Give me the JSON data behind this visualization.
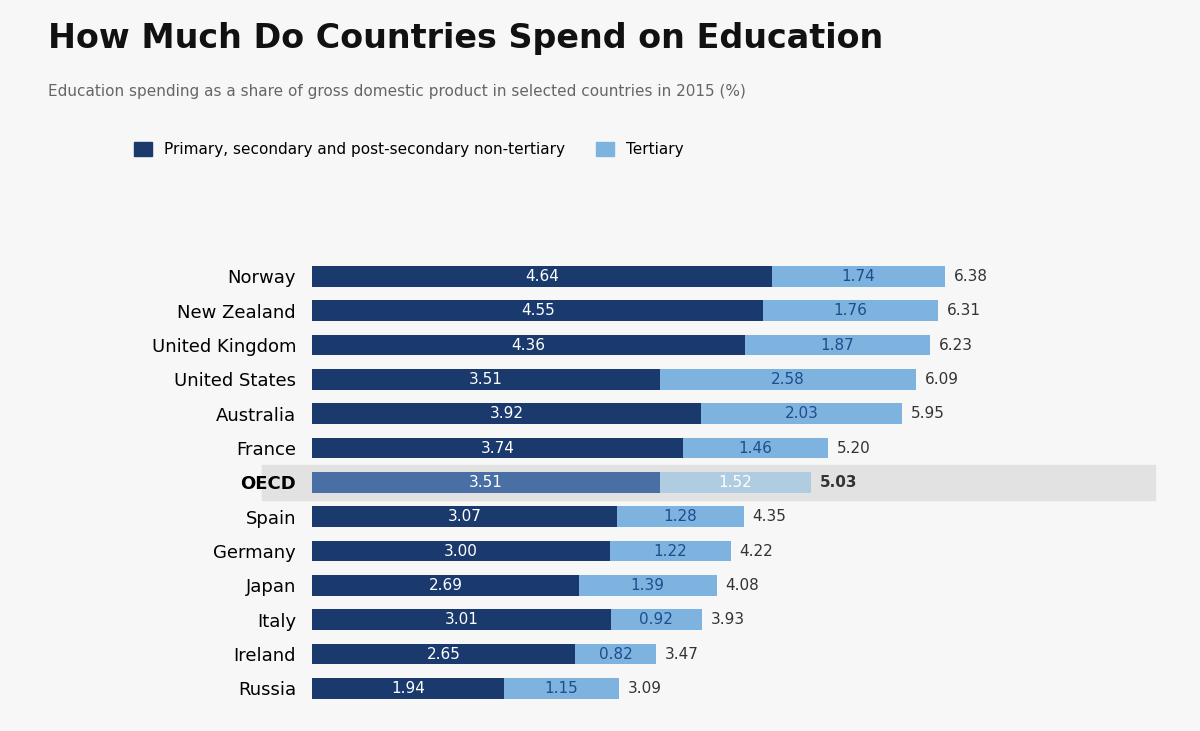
{
  "title": "How Much Do Countries Spend on Education",
  "subtitle": "Education spending as a share of gross domestic product in selected countries in 2015 (%)",
  "countries": [
    "Norway",
    "New Zealand",
    "United Kingdom",
    "United States",
    "Australia",
    "France",
    "OECD",
    "Spain",
    "Germany",
    "Japan",
    "Italy",
    "Ireland",
    "Russia"
  ],
  "primary": [
    4.64,
    4.55,
    4.36,
    3.51,
    3.92,
    3.74,
    3.51,
    3.07,
    3.0,
    2.69,
    3.01,
    2.65,
    1.94
  ],
  "tertiary": [
    1.74,
    1.76,
    1.87,
    2.58,
    2.03,
    1.46,
    1.52,
    1.28,
    1.22,
    1.39,
    0.92,
    0.82,
    1.15
  ],
  "totals": [
    6.38,
    6.31,
    6.23,
    6.09,
    5.95,
    5.2,
    5.03,
    4.35,
    4.22,
    4.08,
    3.93,
    3.47,
    3.09
  ],
  "color_primary": "#1a3a6e",
  "color_tertiary": "#7eb3e0",
  "color_oecd_primary": "#4a6fa5",
  "color_oecd_tertiary": "#b0cce0",
  "oecd_bg": "#e2e2e2",
  "background_color": "#f7f7f7",
  "legend_primary_label": "Primary, secondary and post-secondary non-tertiary",
  "legend_tertiary_label": "Tertiary",
  "title_fontsize": 24,
  "subtitle_fontsize": 11,
  "label_fontsize": 13,
  "bar_label_fontsize": 11,
  "total_fontsize": 11,
  "oecd_index": 6
}
